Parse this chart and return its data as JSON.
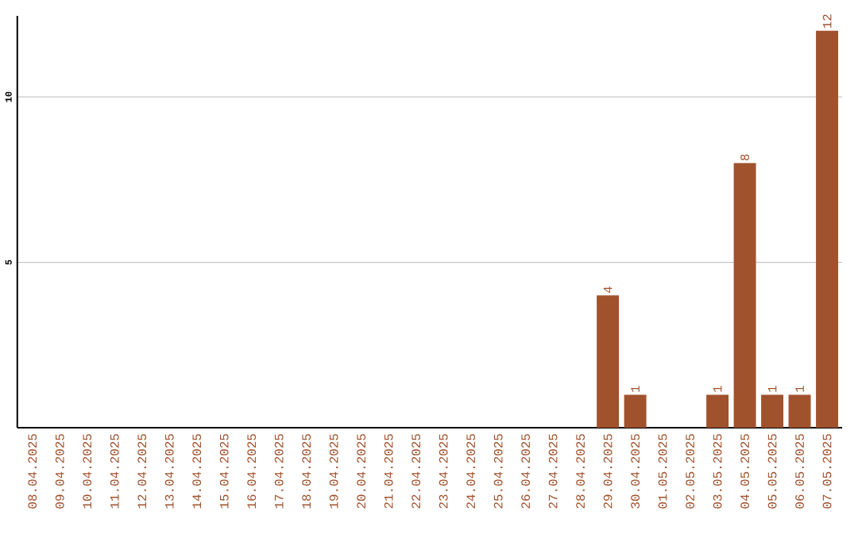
{
  "chart_data": {
    "type": "bar",
    "categories": [
      "08.04.2025",
      "09.04.2025",
      "10.04.2025",
      "11.04.2025",
      "12.04.2025",
      "13.04.2025",
      "14.04.2025",
      "15.04.2025",
      "16.04.2025",
      "17.04.2025",
      "18.04.2025",
      "19.04.2025",
      "20.04.2025",
      "21.04.2025",
      "22.04.2025",
      "23.04.2025",
      "24.04.2025",
      "25.04.2025",
      "26.04.2025",
      "27.04.2025",
      "28.04.2025",
      "29.04.2025",
      "30.04.2025",
      "01.05.2025",
      "02.05.2025",
      "03.05.2025",
      "04.05.2025",
      "05.05.2025",
      "06.05.2025",
      "07.05.2025"
    ],
    "values": [
      0,
      0,
      0,
      0,
      0,
      0,
      0,
      0,
      0,
      0,
      0,
      0,
      0,
      0,
      0,
      0,
      0,
      0,
      0,
      0,
      0,
      4,
      1,
      0,
      0,
      1,
      8,
      1,
      1,
      12
    ],
    "value_labels": [
      null,
      null,
      null,
      null,
      null,
      null,
      null,
      null,
      null,
      null,
      null,
      null,
      null,
      null,
      null,
      null,
      null,
      null,
      null,
      null,
      null,
      "4",
      "1",
      null,
      null,
      "1",
      "8",
      "1",
      "1",
      "12"
    ],
    "color": "#a0522d",
    "ylim": [
      0,
      12.45
    ],
    "yticks": [
      5,
      10
    ],
    "grid": "y"
  }
}
